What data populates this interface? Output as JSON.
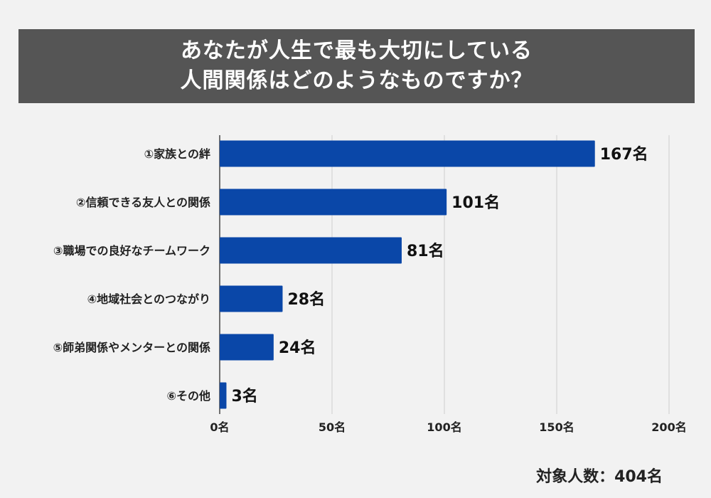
{
  "chart_data": {
    "type": "bar",
    "orientation": "horizontal",
    "title_lines": [
      "あなたが人生で最も大切にしている",
      "人間関係はどのようなものですか？"
    ],
    "categories": [
      "①家族との絆",
      "②信頼できる友人との関係",
      "③職場での良好なチームワーク",
      "④地域社会とのつながり",
      "⑤師弟関係やメンターとの関係",
      "⑥その他"
    ],
    "values": [
      167,
      101,
      81,
      28,
      24,
      3
    ],
    "value_labels": [
      "167名",
      "101名",
      "81名",
      "28名",
      "24名",
      "3名"
    ],
    "xlim": [
      0,
      200
    ],
    "xticks": [
      0,
      50,
      100,
      150,
      200
    ],
    "xtick_labels": [
      "0名",
      "50名",
      "100名",
      "150名",
      "200名"
    ],
    "grid": true,
    "bar_color": "#0a47a8",
    "footnote": "対象人数：404名"
  }
}
